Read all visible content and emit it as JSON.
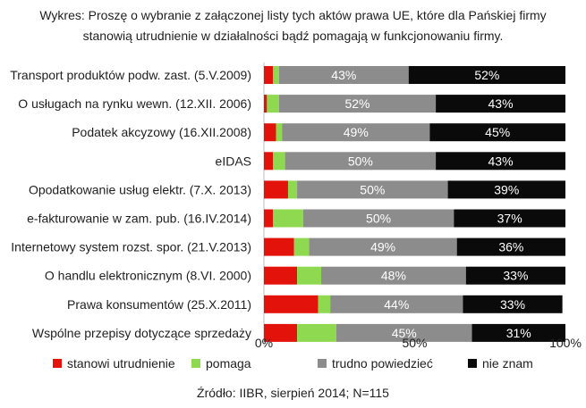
{
  "chart_data": {
    "type": "bar",
    "title_lines": [
      "Wykres: Proszę o wybranie z załączonej listy tych aktów prawa UE, które dla Pańskiej firmy",
      "stanowią utrudnienie w działalności bądź pomagają w funkcjonowaniu firmy."
    ],
    "categories": [
      "Transport produktów podw. zast. (5.V.2009)",
      "O usługach na rynku wewn. (12.XII. 2006)",
      "Podatek akcyzowy (16.XII.2008)",
      "eIDAS",
      "Opodatkowanie usług elektr. (7.X. 2013)",
      "e-fakturowanie w zam. pub. (16.IV.2014)",
      "Internetowy system rozst. spor. (21.V.2013)",
      "O handlu elektronicznym (8.VI. 2000)",
      "Prawa konsumentów (25.X.2011)",
      "Wspólne przepisy dotyczące sprzedaży"
    ],
    "series": [
      {
        "name": "stanowi utrudnienie",
        "color": "#e3120b",
        "values": [
          3,
          1,
          4,
          3,
          8,
          3,
          10,
          11,
          18,
          11
        ]
      },
      {
        "name": "pomaga",
        "color": "#8ed94f",
        "values": [
          2,
          4,
          2,
          4,
          3,
          10,
          5,
          8,
          4,
          13
        ]
      },
      {
        "name": "trudno powiedzieć",
        "color": "#8c8c8c",
        "values": [
          43,
          52,
          49,
          50,
          50,
          50,
          49,
          48,
          44,
          45
        ]
      },
      {
        "name": "nie znam",
        "color": "#0a0a0a",
        "values": [
          52,
          43,
          45,
          43,
          39,
          37,
          36,
          33,
          33,
          31
        ]
      }
    ],
    "labeled_series": [
      "trudno powiedzieć",
      "nie znam"
    ],
    "label_suffix": "%",
    "xlim": [
      0,
      100
    ],
    "x_ticks": [
      "0%",
      "50%",
      "100%"
    ],
    "legend_position": "bottom",
    "stacked": true,
    "orientation": "horizontal"
  },
  "source": "Źródło: IIBR, sierpień 2014; N=115"
}
